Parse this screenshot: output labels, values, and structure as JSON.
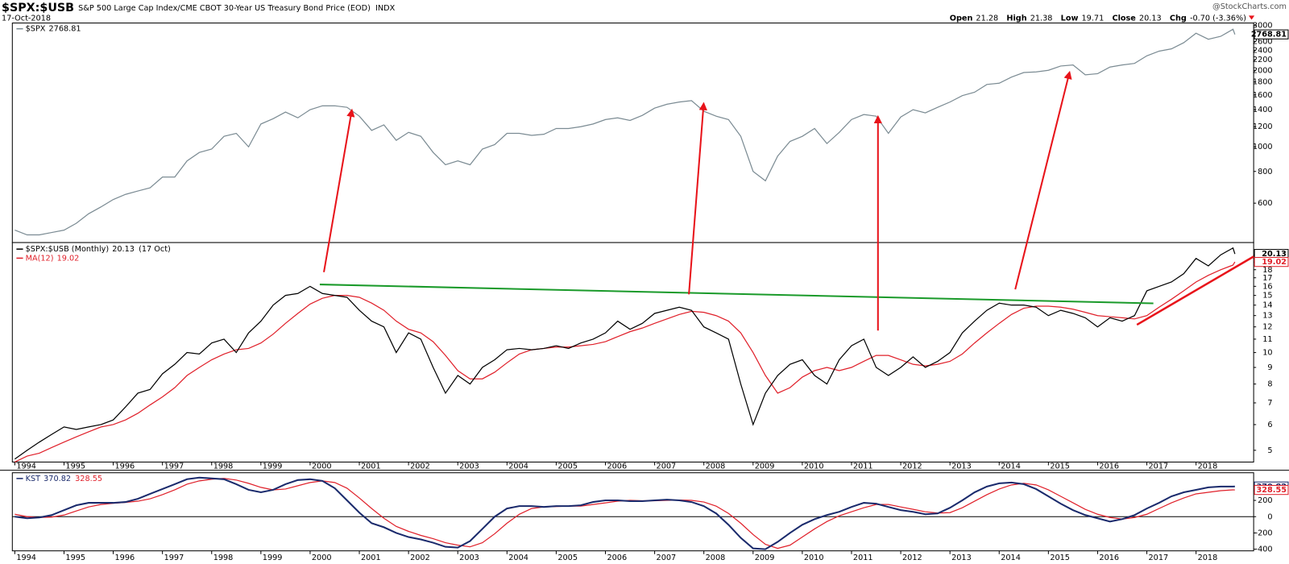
{
  "header": {
    "symbol": "$SPX:$USB",
    "description": "S&P 500 Large Cap Index/CME CBOT 30-Year US Treasury Bond Price (EOD)",
    "exchange": "INDX",
    "date": "17-Oct-2018",
    "credit": "@StockCharts.com",
    "quote": [
      {
        "label": "Open",
        "value": "21.28"
      },
      {
        "label": "High",
        "value": "21.38"
      },
      {
        "label": "Low",
        "value": "19.71"
      },
      {
        "label": "Close",
        "value": "20.13"
      },
      {
        "label": "Chg",
        "value": "-0.70 (-3.36%)"
      }
    ]
  },
  "chart_data": [
    {
      "type": "line",
      "log": true,
      "xlim": [
        1993.95,
        2019.17
      ],
      "ylim": [
        420,
        3070
      ],
      "yticks": [
        600,
        800,
        1000,
        1200,
        1400,
        1600,
        1800,
        2000,
        2200,
        2400,
        2600,
        2800,
        3000
      ],
      "x": [
        1994,
        1994.25,
        1994.5,
        1994.75,
        1995,
        1995.25,
        1995.5,
        1995.75,
        1996,
        1996.25,
        1996.5,
        1996.75,
        1997,
        1997.25,
        1997.5,
        1997.75,
        1998,
        1998.25,
        1998.5,
        1998.75,
        1999,
        1999.25,
        1999.5,
        1999.75,
        2000,
        2000.25,
        2000.5,
        2000.75,
        2001,
        2001.25,
        2001.5,
        2001.75,
        2002,
        2002.25,
        2002.5,
        2002.75,
        2003,
        2003.25,
        2003.5,
        2003.75,
        2004,
        2004.25,
        2004.5,
        2004.75,
        2005,
        2005.25,
        2005.5,
        2005.75,
        2006,
        2006.25,
        2006.5,
        2006.75,
        2007,
        2007.25,
        2007.5,
        2007.75,
        2008,
        2008.25,
        2008.5,
        2008.75,
        2009,
        2009.25,
        2009.5,
        2009.75,
        2010,
        2010.25,
        2010.5,
        2010.75,
        2011,
        2011.25,
        2011.5,
        2011.75,
        2012,
        2012.25,
        2012.5,
        2012.75,
        2013,
        2013.25,
        2013.5,
        2013.75,
        2014,
        2014.25,
        2014.5,
        2014.75,
        2015,
        2015.25,
        2015.5,
        2015.75,
        2016,
        2016.25,
        2016.5,
        2016.75,
        2017,
        2017.25,
        2017.5,
        2017.75,
        2018,
        2018.25,
        2018.5,
        2018.75,
        2018.79
      ],
      "series": [
        {
          "name": "$SPX",
          "last": 2768.81,
          "color": "#7b8b93",
          "values": [
            470,
            450,
            450,
            460,
            470,
            500,
            545,
            580,
            620,
            650,
            670,
            690,
            760,
            760,
            880,
            950,
            980,
            1100,
            1130,
            1000,
            1230,
            1290,
            1370,
            1300,
            1400,
            1450,
            1450,
            1430,
            1320,
            1160,
            1220,
            1060,
            1140,
            1100,
            950,
            850,
            880,
            850,
            980,
            1020,
            1130,
            1130,
            1110,
            1120,
            1180,
            1180,
            1200,
            1230,
            1280,
            1300,
            1270,
            1330,
            1420,
            1470,
            1500,
            1520,
            1380,
            1320,
            1280,
            1100,
            800,
            735,
            920,
            1050,
            1100,
            1180,
            1030,
            1140,
            1280,
            1340,
            1320,
            1130,
            1310,
            1400,
            1360,
            1430,
            1500,
            1590,
            1640,
            1760,
            1780,
            1880,
            1960,
            1970,
            2000,
            2080,
            2100,
            1920,
            1940,
            2060,
            2100,
            2130,
            2280,
            2380,
            2430,
            2570,
            2800,
            2650,
            2720,
            2900,
            2768.81
          ]
        }
      ]
    },
    {
      "type": "line",
      "log": true,
      "xlim": [
        1993.95,
        2019.17
      ],
      "ylim": [
        4.6,
        21.7
      ],
      "yticks": [
        5,
        6,
        7,
        8,
        9,
        10,
        11,
        12,
        13,
        14,
        15,
        16,
        17,
        18,
        19,
        20
      ],
      "xticks": [
        1994,
        1995,
        1996,
        1997,
        1998,
        1999,
        2000,
        2001,
        2002,
        2003,
        2004,
        2005,
        2006,
        2007,
        2008,
        2009,
        2010,
        2011,
        2012,
        2013,
        2014,
        2015,
        2016,
        2017,
        2018
      ],
      "x": [
        1994,
        1994.25,
        1994.5,
        1994.75,
        1995,
        1995.25,
        1995.5,
        1995.75,
        1996,
        1996.25,
        1996.5,
        1996.75,
        1997,
        1997.25,
        1997.5,
        1997.75,
        1998,
        1998.25,
        1998.5,
        1998.75,
        1999,
        1999.25,
        1999.5,
        1999.75,
        2000,
        2000.25,
        2000.5,
        2000.75,
        2001,
        2001.25,
        2001.5,
        2001.75,
        2002,
        2002.25,
        2002.5,
        2002.75,
        2003,
        2003.25,
        2003.5,
        2003.75,
        2004,
        2004.25,
        2004.5,
        2004.75,
        2005,
        2005.25,
        2005.5,
        2005.75,
        2006,
        2006.25,
        2006.5,
        2006.75,
        2007,
        2007.25,
        2007.5,
        2007.75,
        2008,
        2008.25,
        2008.5,
        2008.75,
        2009,
        2009.25,
        2009.5,
        2009.75,
        2010,
        2010.25,
        2010.5,
        2010.75,
        2011,
        2011.25,
        2011.5,
        2011.75,
        2012,
        2012.25,
        2012.5,
        2012.75,
        2013,
        2013.25,
        2013.5,
        2013.75,
        2014,
        2014.25,
        2014.5,
        2014.75,
        2015,
        2015.25,
        2015.5,
        2015.75,
        2016,
        2016.25,
        2016.5,
        2016.75,
        2017,
        2017.25,
        2017.5,
        2017.75,
        2018,
        2018.25,
        2018.5,
        2018.75,
        2018.79
      ],
      "series": [
        {
          "name": "$SPX:$USB (Monthly)",
          "last": 20.13,
          "last_date": "(17 Oct)",
          "color": "#000000",
          "values": [
            4.7,
            5.0,
            5.3,
            5.6,
            5.9,
            5.8,
            5.9,
            6.0,
            6.2,
            6.8,
            7.5,
            7.7,
            8.6,
            9.2,
            10.0,
            9.9,
            10.7,
            11.0,
            10.0,
            11.5,
            12.5,
            14.0,
            15.0,
            15.2,
            16.0,
            15.2,
            15.0,
            14.8,
            13.5,
            12.5,
            12.0,
            10.0,
            11.5,
            11.0,
            9.0,
            7.5,
            8.5,
            8.0,
            9.0,
            9.5,
            10.2,
            10.3,
            10.2,
            10.3,
            10.5,
            10.3,
            10.7,
            11.0,
            11.5,
            12.5,
            11.8,
            12.3,
            13.2,
            13.5,
            13.8,
            13.5,
            12.0,
            11.5,
            11.0,
            8.0,
            6.0,
            7.5,
            8.5,
            9.2,
            9.5,
            8.5,
            8.0,
            9.5,
            10.5,
            11.0,
            9.0,
            8.5,
            9.0,
            9.7,
            9.0,
            9.4,
            10.0,
            11.5,
            12.5,
            13.5,
            14.2,
            14.0,
            14.0,
            13.8,
            13.0,
            13.5,
            13.2,
            12.8,
            12.0,
            12.8,
            12.5,
            13.0,
            15.5,
            16.0,
            16.5,
            17.5,
            19.5,
            18.5,
            20.0,
            21.0,
            20.13
          ]
        },
        {
          "name": "MA(12)",
          "last": 19.02,
          "color": "#e0202a",
          "values": [
            4.6,
            4.8,
            4.9,
            5.1,
            5.3,
            5.5,
            5.7,
            5.9,
            6.0,
            6.2,
            6.5,
            6.9,
            7.3,
            7.8,
            8.5,
            9.0,
            9.5,
            9.9,
            10.2,
            10.3,
            10.7,
            11.4,
            12.3,
            13.2,
            14.1,
            14.7,
            15.0,
            15.0,
            14.8,
            14.2,
            13.5,
            12.5,
            11.8,
            11.5,
            10.8,
            9.8,
            8.8,
            8.3,
            8.3,
            8.7,
            9.3,
            9.9,
            10.2,
            10.3,
            10.4,
            10.4,
            10.5,
            10.6,
            10.8,
            11.2,
            11.6,
            11.9,
            12.3,
            12.7,
            13.1,
            13.4,
            13.3,
            13.0,
            12.5,
            11.5,
            10.0,
            8.5,
            7.5,
            7.8,
            8.4,
            8.8,
            9.0,
            8.8,
            9.0,
            9.4,
            9.8,
            9.8,
            9.5,
            9.2,
            9.1,
            9.2,
            9.4,
            9.9,
            10.7,
            11.5,
            12.3,
            13.1,
            13.7,
            13.9,
            13.9,
            13.8,
            13.6,
            13.3,
            13.0,
            12.9,
            12.8,
            12.7,
            13.0,
            13.8,
            14.6,
            15.5,
            16.5,
            17.3,
            18.0,
            18.6,
            19.02
          ]
        }
      ]
    },
    {
      "type": "line",
      "log": false,
      "zero_line": true,
      "xlim": [
        1993.95,
        2019.17
      ],
      "ylim": [
        -420,
        540
      ],
      "yticks": [
        -400,
        -200,
        0,
        200
      ],
      "xticks": [
        1994,
        1995,
        1996,
        1997,
        1998,
        1999,
        2000,
        2001,
        2002,
        2003,
        2004,
        2005,
        2006,
        2007,
        2008,
        2009,
        2010,
        2011,
        2012,
        2013,
        2014,
        2015,
        2016,
        2017,
        2018
      ],
      "x": [
        1994,
        1994.25,
        1994.5,
        1994.75,
        1995,
        1995.25,
        1995.5,
        1995.75,
        1996,
        1996.25,
        1996.5,
        1996.75,
        1997,
        1997.25,
        1997.5,
        1997.75,
        1998,
        1998.25,
        1998.5,
        1998.75,
        1999,
        1999.25,
        1999.5,
        1999.75,
        2000,
        2000.25,
        2000.5,
        2000.75,
        2001,
        2001.25,
        2001.5,
        2001.75,
        2002,
        2002.25,
        2002.5,
        2002.75,
        2003,
        2003.25,
        2003.5,
        2003.75,
        2004,
        2004.25,
        2004.5,
        2004.75,
        2005,
        2005.25,
        2005.5,
        2005.75,
        2006,
        2006.25,
        2006.5,
        2006.75,
        2007,
        2007.25,
        2007.5,
        2007.75,
        2008,
        2008.25,
        2008.5,
        2008.75,
        2009,
        2009.25,
        2009.5,
        2009.75,
        2010,
        2010.25,
        2010.5,
        2010.75,
        2011,
        2011.25,
        2011.5,
        2011.75,
        2012,
        2012.25,
        2012.5,
        2012.75,
        2013,
        2013.25,
        2013.5,
        2013.75,
        2014,
        2014.25,
        2014.5,
        2014.75,
        2015,
        2015.25,
        2015.5,
        2015.75,
        2016,
        2016.25,
        2016.5,
        2016.75,
        2017,
        2017.25,
        2017.5,
        2017.75,
        2018,
        2018.25,
        2018.5,
        2018.75,
        2018.79
      ],
      "series": [
        {
          "name": "KST",
          "last": 370.82,
          "color": "#1a2a6c",
          "values": [
            0,
            -20,
            -10,
            20,
            80,
            140,
            170,
            170,
            170,
            180,
            220,
            280,
            340,
            400,
            460,
            480,
            470,
            460,
            400,
            330,
            300,
            330,
            400,
            450,
            460,
            440,
            350,
            200,
            50,
            -80,
            -130,
            -200,
            -250,
            -280,
            -320,
            -370,
            -380,
            -300,
            -150,
            0,
            100,
            130,
            130,
            120,
            130,
            130,
            140,
            180,
            200,
            200,
            190,
            190,
            200,
            210,
            200,
            180,
            130,
            40,
            -100,
            -260,
            -390,
            -400,
            -310,
            -200,
            -100,
            -30,
            20,
            60,
            120,
            170,
            160,
            120,
            80,
            60,
            30,
            40,
            110,
            200,
            300,
            370,
            410,
            420,
            400,
            340,
            250,
            160,
            80,
            20,
            -20,
            -60,
            -30,
            20,
            100,
            170,
            250,
            300,
            330,
            360,
            370,
            370,
            370.82
          ]
        },
        {
          "last": 328.55,
          "color": "#e0202a",
          "values": [
            30,
            0,
            -10,
            -5,
            20,
            70,
            120,
            150,
            165,
            175,
            190,
            220,
            270,
            330,
            400,
            440,
            460,
            470,
            450,
            410,
            360,
            330,
            340,
            380,
            420,
            440,
            420,
            350,
            230,
            100,
            -20,
            -120,
            -180,
            -230,
            -270,
            -320,
            -350,
            -370,
            -320,
            -210,
            -80,
            30,
            100,
            120,
            125,
            130,
            130,
            150,
            170,
            190,
            200,
            195,
            195,
            200,
            205,
            200,
            180,
            130,
            40,
            -80,
            -220,
            -340,
            -390,
            -350,
            -250,
            -150,
            -60,
            10,
            60,
            110,
            150,
            150,
            120,
            90,
            60,
            45,
            50,
            110,
            190,
            270,
            340,
            390,
            410,
            390,
            330,
            250,
            170,
            90,
            30,
            -10,
            -30,
            -10,
            30,
            100,
            170,
            230,
            280,
            300,
            320,
            330,
            328.55
          ]
        }
      ]
    }
  ]
}
